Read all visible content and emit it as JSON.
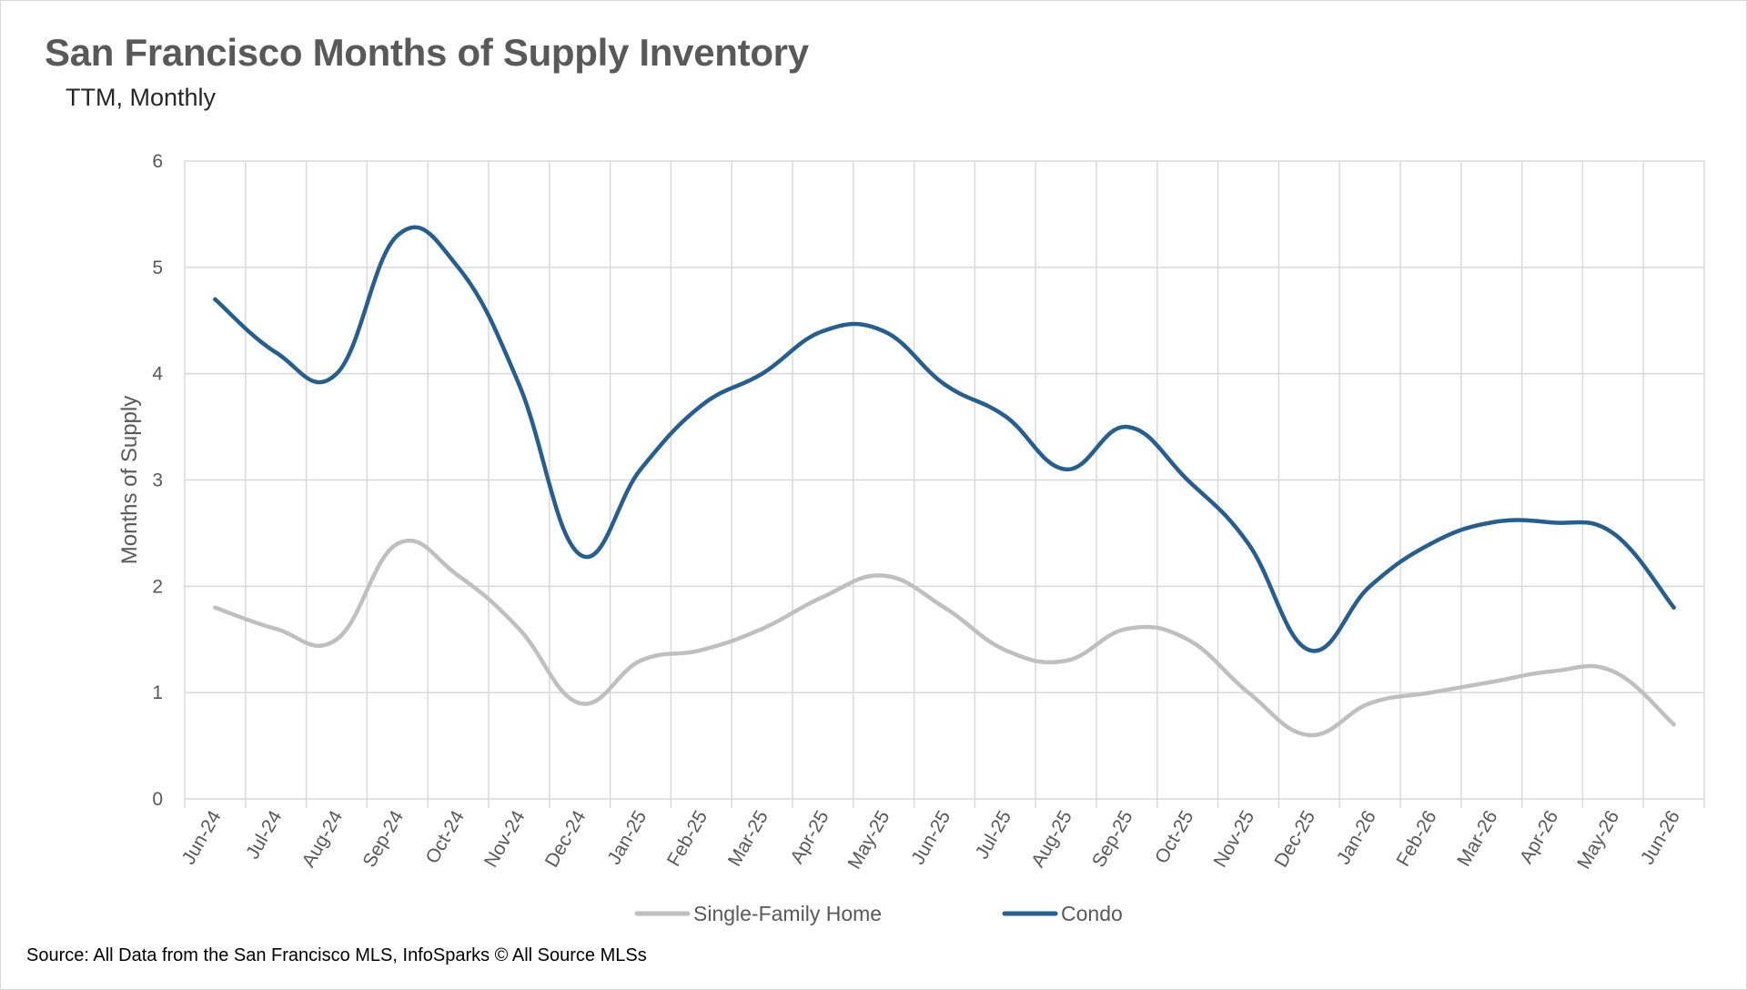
{
  "title": "San Francisco Months of Supply Inventory",
  "subtitle": "TTM, Monthly",
  "source": "Source: All Data from the San Francisco MLS, InfoSparks © All Source MLSs",
  "colors": {
    "single_family": "#bfbfbf",
    "condo": "#255e91",
    "grid": "#d9d9d9",
    "text": "#595959"
  },
  "chart_data": {
    "type": "line",
    "title": "San Francisco Months of Supply Inventory",
    "subtitle": "TTM, Monthly",
    "xlabel": "",
    "ylabel": "Months of Supply",
    "ylim": [
      0,
      6
    ],
    "yticks": [
      0,
      1,
      2,
      3,
      4,
      5,
      6
    ],
    "grid": true,
    "smooth": true,
    "legend_position": "bottom",
    "categories": [
      "Jun-24",
      "Jul-24",
      "Aug-24",
      "Sep-24",
      "Oct-24",
      "Nov-24",
      "Dec-24",
      "Jan-25",
      "Feb-25",
      "Mar-25",
      "Apr-25",
      "May-25",
      "Jun-25",
      "Jul-25",
      "Aug-25",
      "Sep-25",
      "Oct-25",
      "Nov-25",
      "Dec-25",
      "Jan-26",
      "Feb-26",
      "Mar-26",
      "Apr-26",
      "May-26",
      "Jun-26"
    ],
    "series": [
      {
        "name": "Single-Family Home",
        "color": "#bfbfbf",
        "values": [
          1.8,
          1.6,
          1.5,
          2.4,
          2.1,
          1.6,
          0.9,
          1.3,
          1.4,
          1.6,
          1.9,
          2.1,
          1.8,
          1.4,
          1.3,
          1.6,
          1.5,
          1.0,
          0.6,
          0.9,
          1.0,
          1.1,
          1.2,
          1.2,
          0.7
        ]
      },
      {
        "name": "Condo",
        "color": "#255e91",
        "values": [
          4.7,
          4.2,
          4.0,
          5.3,
          5.0,
          3.9,
          2.3,
          3.1,
          3.7,
          4.0,
          4.4,
          4.4,
          3.9,
          3.6,
          3.1,
          3.5,
          3.0,
          2.4,
          1.4,
          2.0,
          2.4,
          2.6,
          2.6,
          2.5,
          1.8
        ]
      }
    ]
  }
}
